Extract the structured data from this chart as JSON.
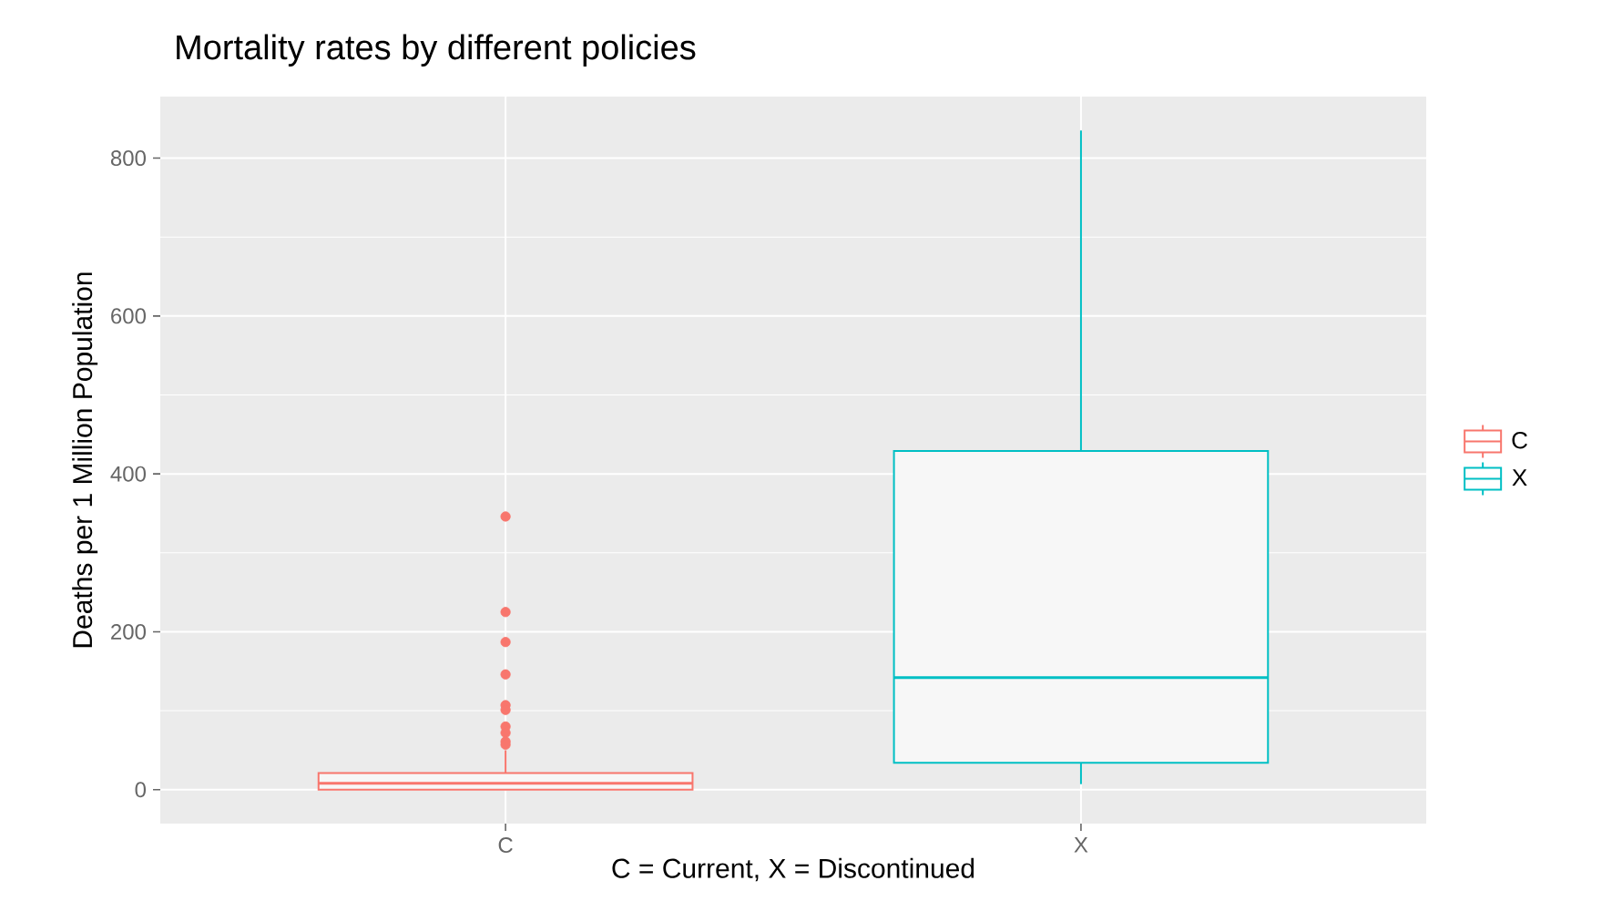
{
  "chart_data": {
    "type": "box",
    "title": "Mortality rates by different policies",
    "xlabel": "C = Current, X = Discontinued",
    "ylabel": "Deaths per 1 Million Population",
    "categories": [
      "C",
      "X"
    ],
    "series": [
      {
        "name": "C",
        "color": "#f8766d",
        "boxes": [
          {
            "low": 0,
            "q1": 0,
            "median": 8,
            "q3": 21,
            "high": 50,
            "outliers": [
              346,
              225,
              187,
              146,
              107,
              101,
              80,
              72,
              61,
              57
            ]
          },
          null
        ]
      },
      {
        "name": "X",
        "color": "#00bfc4",
        "boxes": [
          null,
          {
            "low": 7,
            "q1": 34,
            "median": 142,
            "q3": 429,
            "high": 835
          }
        ]
      }
    ],
    "ylim": [
      -43,
      878
    ],
    "yticks": [
      0,
      200,
      400,
      600,
      800
    ],
    "grid": true,
    "legend": "right"
  }
}
